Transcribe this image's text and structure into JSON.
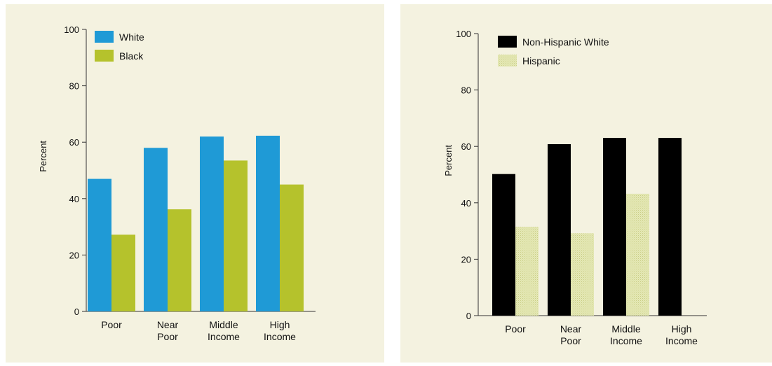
{
  "chart_data": [
    {
      "type": "bar",
      "title": "",
      "xlabel": "",
      "ylabel": "Percent",
      "ylim": [
        0,
        100
      ],
      "yticks": [
        0,
        20,
        40,
        60,
        80,
        100
      ],
      "grid": false,
      "legend_position": "top-left",
      "categories": [
        [
          "Poor"
        ],
        [
          "Near",
          "Poor"
        ],
        [
          "Middle",
          "Income"
        ],
        [
          "High",
          "Income"
        ]
      ],
      "series": [
        {
          "name": "White",
          "color": "#1f9ad6",
          "values": [
            47,
            58,
            62,
            62.3
          ]
        },
        {
          "name": "Black",
          "color": "#b5c22c",
          "values": [
            27.2,
            36.2,
            53.5,
            45
          ]
        }
      ]
    },
    {
      "type": "bar",
      "title": "",
      "xlabel": "",
      "ylabel": "Percent",
      "ylim": [
        0,
        100
      ],
      "yticks": [
        0,
        20,
        40,
        60,
        80,
        100
      ],
      "grid": false,
      "legend_position": "top-left",
      "categories": [
        [
          "Poor"
        ],
        [
          "Near",
          "Poor"
        ],
        [
          "Middle",
          "Income"
        ],
        [
          "High",
          "Income"
        ]
      ],
      "series": [
        {
          "name": "Non-Hispanic White",
          "color": "#000000",
          "values": [
            50.2,
            60.8,
            63,
            63
          ]
        },
        {
          "name": "Hispanic",
          "color": "#e5e8b5",
          "pattern": "dotted",
          "values": [
            31.5,
            29.2,
            43.2,
            null
          ]
        }
      ]
    }
  ]
}
